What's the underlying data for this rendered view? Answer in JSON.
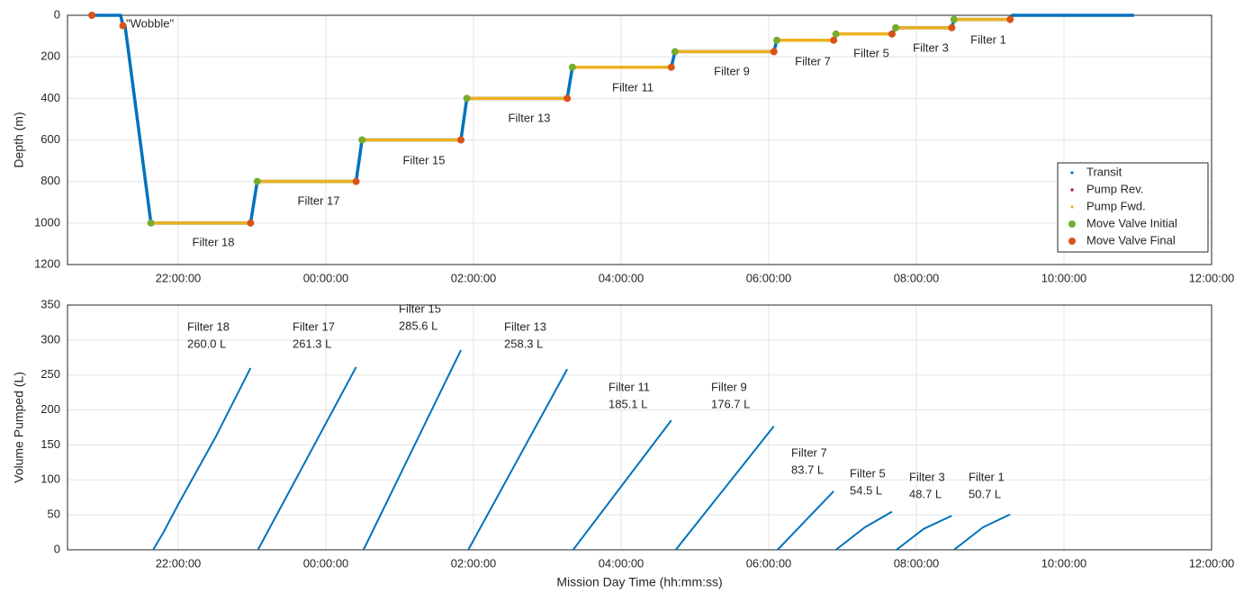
{
  "chart_data": [
    {
      "type": "line",
      "ylabel": "Depth (m)",
      "xlim": [
        20.5,
        36
      ],
      "ylim": [
        0,
        1200
      ],
      "y_reversed": true,
      "grid": true,
      "legend": "lower right",
      "xticks": [
        {
          "value": 22,
          "label": "22:00:00"
        },
        {
          "value": 24,
          "label": "00:00:00"
        },
        {
          "value": 26,
          "label": "02:00:00"
        },
        {
          "value": 28,
          "label": "04:00:00"
        },
        {
          "value": 30,
          "label": "06:00:00"
        },
        {
          "value": 32,
          "label": "08:00:00"
        },
        {
          "value": 34,
          "label": "10:00:00"
        },
        {
          "value": 36,
          "label": "12:00:00"
        }
      ],
      "yticks": [
        0,
        200,
        400,
        600,
        800,
        1000,
        1200
      ],
      "annotations": [
        "\"Wobble\"",
        "Filter 18",
        "Filter 17",
        "Filter 15",
        "Filter 13",
        "Filter 11",
        "Filter 9",
        "Filter 7",
        "Filter 5",
        "Filter 3",
        "Filter 1"
      ],
      "series": [
        {
          "name": "Transit",
          "color": "#0072BD",
          "mode": "line",
          "x": [
            20.8,
            21.22,
            21.25,
            21.28,
            21.63,
            22.98,
            23.07,
            24.41,
            24.49,
            25.83,
            25.91,
            27.27,
            27.34,
            28.68,
            28.73,
            30.07,
            30.11,
            30.88,
            30.91,
            31.67,
            31.72,
            32.48,
            32.51,
            33.27,
            33.3,
            34.95
          ],
          "values": [
            0,
            0,
            50,
            50,
            1000,
            1000,
            800,
            800,
            600,
            600,
            400,
            400,
            250,
            250,
            175,
            175,
            120,
            120,
            90,
            90,
            60,
            60,
            20,
            20,
            0,
            0
          ]
        },
        {
          "name": "Pump Rev.",
          "color": "#A2142F",
          "mode": "points",
          "x": [],
          "values": []
        },
        {
          "name": "Pump Fwd.",
          "color": "#EDB120",
          "mode": "line",
          "x": [
            21.63,
            22.98,
            null,
            23.07,
            24.41,
            null,
            24.49,
            25.83,
            null,
            25.91,
            27.27,
            null,
            27.34,
            28.68,
            null,
            28.73,
            30.07,
            null,
            30.11,
            30.88,
            null,
            30.91,
            31.67,
            null,
            31.72,
            32.48,
            null,
            32.51,
            33.27
          ],
          "values": [
            1000,
            1000,
            null,
            800,
            800,
            null,
            600,
            600,
            null,
            400,
            400,
            null,
            250,
            250,
            null,
            175,
            175,
            null,
            120,
            120,
            null,
            90,
            90,
            null,
            60,
            60,
            null,
            20,
            20
          ]
        },
        {
          "name": "Move Valve Initial",
          "color": "#77AC30",
          "mode": "points",
          "x": [
            21.63,
            23.07,
            24.49,
            25.91,
            27.34,
            28.73,
            30.11,
            30.91,
            31.72,
            32.51
          ],
          "values": [
            1000,
            800,
            600,
            400,
            250,
            175,
            120,
            90,
            60,
            20
          ]
        },
        {
          "name": "Move Valve Final",
          "color": "#D95319",
          "mode": "points",
          "x": [
            20.83,
            21.25,
            22.98,
            24.41,
            25.83,
            27.27,
            28.68,
            30.07,
            30.88,
            31.67,
            32.48,
            33.27
          ],
          "values": [
            0,
            50,
            1000,
            800,
            600,
            400,
            250,
            175,
            120,
            90,
            60,
            20
          ]
        }
      ]
    },
    {
      "type": "line",
      "ylabel": "Volume Pumped (L)",
      "xlabel": "Mission Day Time (hh:mm:ss)",
      "xlim": [
        20.5,
        36
      ],
      "ylim": [
        0,
        350
      ],
      "grid": true,
      "xticks": [
        {
          "value": 22,
          "label": "22:00:00"
        },
        {
          "value": 24,
          "label": "00:00:00"
        },
        {
          "value": 26,
          "label": "02:00:00"
        },
        {
          "value": 28,
          "label": "04:00:00"
        },
        {
          "value": 30,
          "label": "06:00:00"
        },
        {
          "value": 32,
          "label": "08:00:00"
        },
        {
          "value": 34,
          "label": "10:00:00"
        },
        {
          "value": 36,
          "label": "12:00:00"
        }
      ],
      "yticks": [
        0,
        50,
        100,
        150,
        200,
        250,
        300,
        350
      ],
      "series": [
        {
          "name": "Filter 18",
          "color": "#0072BD",
          "x": [
            21.66,
            21.8,
            22.0,
            22.5,
            22.98
          ],
          "values": [
            0,
            25,
            65,
            160,
            260.0
          ],
          "value_labels": [
            null,
            null,
            null,
            null,
            "260.0 L"
          ]
        },
        {
          "name": "Filter 17",
          "color": "#0072BD",
          "x": [
            23.08,
            24.41
          ],
          "values": [
            0,
            261.3
          ],
          "value_labels": [
            null,
            "261.3 L"
          ]
        },
        {
          "name": "Filter 15",
          "color": "#0072BD",
          "x": [
            24.51,
            25.83
          ],
          "values": [
            0,
            285.6
          ],
          "value_labels": [
            null,
            "285.6 L"
          ]
        },
        {
          "name": "Filter 13",
          "color": "#0072BD",
          "x": [
            25.93,
            27.27
          ],
          "values": [
            0,
            258.3
          ],
          "value_labels": [
            null,
            "258.3 L"
          ]
        },
        {
          "name": "Filter 11",
          "color": "#0072BD",
          "x": [
            27.35,
            28.68
          ],
          "values": [
            0,
            185.1
          ],
          "value_labels": [
            null,
            "185.1 L"
          ]
        },
        {
          "name": "Filter 9",
          "color": "#0072BD",
          "x": [
            28.74,
            30.07
          ],
          "values": [
            0,
            176.7
          ],
          "value_labels": [
            null,
            "176.7 L"
          ]
        },
        {
          "name": "Filter 7",
          "color": "#0072BD",
          "x": [
            30.12,
            30.88
          ],
          "values": [
            0,
            83.7
          ],
          "value_labels": [
            null,
            "83.7 L"
          ]
        },
        {
          "name": "Filter 5",
          "color": "#0072BD",
          "x": [
            30.91,
            31.3,
            31.67
          ],
          "values": [
            0,
            32,
            54.5
          ],
          "value_labels": [
            null,
            null,
            "54.5 L"
          ]
        },
        {
          "name": "Filter 3",
          "color": "#0072BD",
          "x": [
            31.73,
            32.1,
            32.48
          ],
          "values": [
            0,
            30,
            48.7
          ],
          "value_labels": [
            null,
            null,
            "48.7 L"
          ]
        },
        {
          "name": "Filter 1",
          "color": "#0072BD",
          "x": [
            32.51,
            32.9,
            33.27
          ],
          "values": [
            0,
            32,
            50.7
          ],
          "value_labels": [
            null,
            null,
            "50.7 L"
          ]
        }
      ]
    }
  ]
}
